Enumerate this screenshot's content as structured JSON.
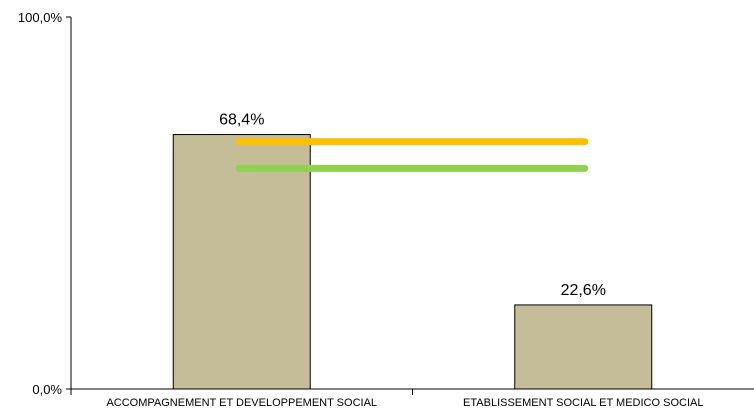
{
  "chart_data": {
    "type": "bar",
    "categories": [
      "ACCOMPAGNEMENT ET DEVELOPPEMENT SOCIAL",
      "ETABLISSEMENT SOCIAL ET MEDICO SOCIAL"
    ],
    "values": [
      68.4,
      22.6
    ],
    "data_labels": [
      "68,4%",
      "22,6%"
    ],
    "ylim": [
      0,
      100
    ],
    "y_ticks": [
      {
        "value": 0,
        "label": "0,0%"
      },
      {
        "value": 100,
        "label": "100,0%"
      }
    ],
    "reference_lines": [
      {
        "value": 66.5,
        "color": "#FFC000",
        "span": [
          0,
          1
        ]
      },
      {
        "value": 59.3,
        "color": "#92D050",
        "span": [
          0,
          1
        ]
      }
    ],
    "bar_color": "#C4BD97",
    "grid": false,
    "title": "",
    "xlabel": "",
    "ylabel": ""
  }
}
